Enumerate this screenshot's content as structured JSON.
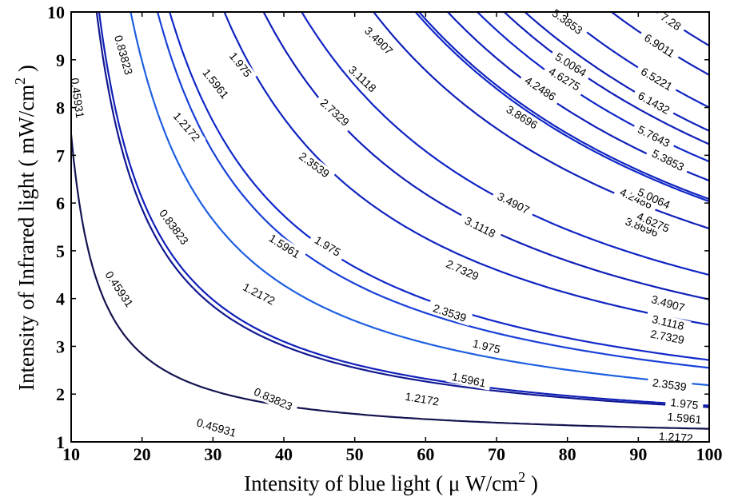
{
  "chart_data": {
    "type": "contour",
    "xlabel": {
      "pre": "Intensity of blue light ( μ W/cm",
      "sup": "2",
      "post": " )"
    },
    "ylabel": {
      "pre": "Intensity of Infrared light ( mW/cm",
      "sup": "2",
      "post": " )"
    },
    "xlim": [
      10,
      100
    ],
    "ylim": [
      1,
      10
    ],
    "x_ticks": [
      "10",
      "20",
      "30",
      "40",
      "50",
      "60",
      "70",
      "80",
      "90",
      "100"
    ],
    "y_ticks": [
      "1",
      "2",
      "3",
      "4",
      "5",
      "6",
      "7",
      "8",
      "9",
      "10"
    ],
    "grid": false,
    "levels": [
      0.45931,
      0.83823,
      1.2172,
      1.5961,
      1.975,
      2.3539,
      2.7329,
      3.1118,
      3.4907,
      3.8696,
      4.2486,
      4.6275,
      5.0064,
      5.3853,
      5.7643,
      6.1432,
      6.5221,
      6.9011,
      7.28
    ],
    "level_labels": [
      "0.45931",
      "0.83823",
      "1.2172",
      "1.5961",
      "1.975",
      "2.3539",
      "2.7329",
      "3.1118",
      "3.4907",
      "3.8696",
      "4.2486",
      "4.6275",
      "5.0064",
      "5.3853",
      "5.7643",
      "6.1432",
      "6.5221",
      "6.9011",
      "7.28"
    ],
    "level_colors": [
      "#141450",
      "#101890",
      "#1020b8",
      "#1e5fe0",
      "#1840d8",
      "#1028c8",
      "#1024c0",
      "#1020b8",
      "#1024c4",
      "#1020b8",
      "#1028c8",
      "#1024c0",
      "#1020b8",
      "#1020b8",
      "#1028c8",
      "#1020b8",
      "#1024c0",
      "#1020b8",
      "#1020b8"
    ],
    "label_positions": [
      [
        [
          10.9,
          8.2
        ],
        [
          16.8,
          4.2
        ],
        [
          30.5,
          1.3
        ]
      ],
      [
        [
          17.4,
          9.1
        ],
        [
          24.5,
          5.5
        ],
        [
          38.5,
          1.9
        ]
      ],
      [
        [
          26.3,
          7.6
        ],
        [
          36.5,
          4.1
        ],
        [
          59.5,
          1.9
        ],
        [
          95.3,
          1.1
        ]
      ],
      [
        [
          30.4,
          8.5
        ],
        [
          40.1,
          5.1
        ],
        [
          66.1,
          2.3
        ],
        [
          96.5,
          1.5
        ]
      ],
      [
        [
          33.9,
          8.9
        ],
        [
          46.2,
          5.1
        ],
        [
          68.6,
          3.0
        ],
        [
          96.5,
          1.8
        ]
      ],
      [
        [
          44.3,
          6.8
        ],
        [
          63.4,
          3.7
        ],
        [
          94.4,
          2.2
        ]
      ],
      [
        [
          47.2,
          7.9
        ],
        [
          65.2,
          4.6
        ],
        [
          94.1,
          3.2
        ]
      ],
      [
        [
          51.1,
          8.6
        ],
        [
          67.7,
          5.5
        ],
        [
          94.2,
          3.5
        ]
      ],
      [
        [
          53.4,
          9.4
        ],
        [
          72.4,
          6.0
        ],
        [
          94.2,
          3.9
        ]
      ],
      [
        [
          73.6,
          7.8
        ],
        [
          90.5,
          5.5
        ]
      ],
      [
        [
          76.2,
          8.4
        ],
        [
          89.7,
          6.1
        ]
      ],
      [
        [
          79.6,
          8.6
        ],
        [
          92.1,
          5.6
        ]
      ],
      [
        [
          80.5,
          8.9
        ],
        [
          92.2,
          6.1
        ]
      ],
      [
        [
          80.0,
          9.8
        ],
        [
          94.2,
          6.9
        ]
      ],
      [
        [
          92.2,
          7.4
        ]
      ],
      [
        [
          92.2,
          8.1
        ]
      ],
      [
        [
          92.6,
          8.6
        ]
      ],
      [
        [
          93.0,
          9.3
        ]
      ],
      [
        [
          94.6,
          9.8
        ]
      ]
    ]
  }
}
